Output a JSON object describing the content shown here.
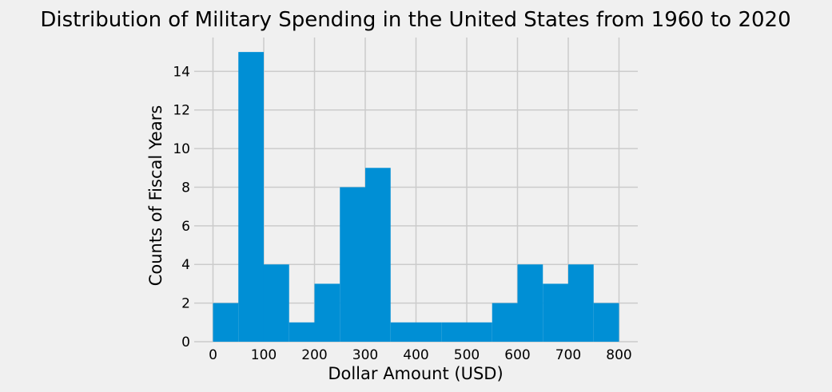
{
  "chart_data": {
    "type": "bar",
    "title": "Distribution of Military Spending in the United States from 1960 to 2020",
    "xlabel": "Dollar Amount (USD)",
    "ylabel": "Counts of Fiscal Years",
    "bin_width": 50,
    "bins": [
      {
        "x0": 0,
        "x1": 50,
        "count": 2
      },
      {
        "x0": 50,
        "x1": 100,
        "count": 15
      },
      {
        "x0": 100,
        "x1": 150,
        "count": 4
      },
      {
        "x0": 150,
        "x1": 200,
        "count": 1
      },
      {
        "x0": 200,
        "x1": 250,
        "count": 3
      },
      {
        "x0": 250,
        "x1": 300,
        "count": 8
      },
      {
        "x0": 300,
        "x1": 350,
        "count": 9
      },
      {
        "x0": 350,
        "x1": 400,
        "count": 1
      },
      {
        "x0": 400,
        "x1": 450,
        "count": 1
      },
      {
        "x0": 450,
        "x1": 500,
        "count": 1
      },
      {
        "x0": 500,
        "x1": 550,
        "count": 1
      },
      {
        "x0": 550,
        "x1": 600,
        "count": 2
      },
      {
        "x0": 600,
        "x1": 650,
        "count": 4
      },
      {
        "x0": 650,
        "x1": 700,
        "count": 3
      },
      {
        "x0": 700,
        "x1": 750,
        "count": 4
      },
      {
        "x0": 750,
        "x1": 800,
        "count": 2
      }
    ],
    "xlim": [
      -37,
      837
    ],
    "ylim": [
      0,
      15.75
    ],
    "xticks": [
      0,
      100,
      200,
      300,
      400,
      500,
      600,
      700,
      800
    ],
    "yticks": [
      0,
      2,
      4,
      6,
      8,
      10,
      12,
      14
    ],
    "grid": true,
    "bar_color": "#008fd5",
    "grid_color": "#cbcbcb",
    "background_color": "#f0f0f0"
  }
}
